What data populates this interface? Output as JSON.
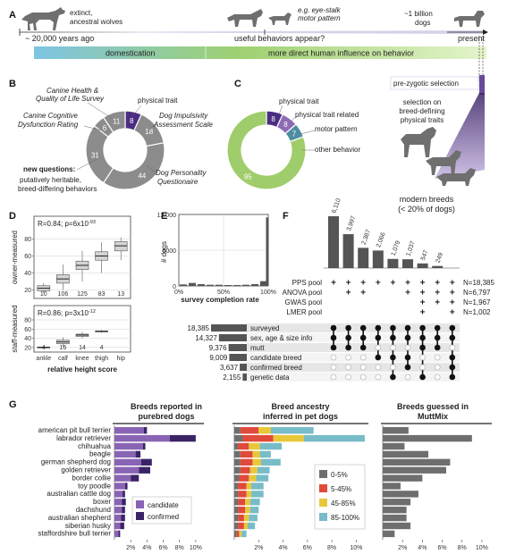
{
  "panel_a": {
    "letter": "A",
    "wolf_label_1": "extinct,",
    "wolf_label_2": "ancestral wolves",
    "years_ago": "~ 20,000 years ago",
    "example_label": "e.g. eye-stalk",
    "example_label_2": "motor pattern",
    "behaviors_label": "useful behaviors appear?",
    "dogs_label_1": "~1 billion",
    "dogs_label_2": "dogs",
    "present_label": "present",
    "domestication": "domestication",
    "influence": "more direct human influence on behavior",
    "colors": {
      "left": "#7ec4e4",
      "mid": "#9ed070",
      "right": "#d6f0b8"
    }
  },
  "panel_b": {
    "letter": "B",
    "labels": {
      "health": [
        "Canine Health &",
        "Quality of Life Survey"
      ],
      "cognitive": [
        "Canine Cognitive",
        "Dysfunction Rating"
      ],
      "physical": "physical trait",
      "impulsivity": [
        "Dog Impulsivity",
        "Assessment Scale"
      ],
      "personality": [
        "Dog Personality",
        "Questionaire"
      ],
      "new_q": "new questions:",
      "new_q_desc": [
        "putatively heritable,",
        "breed-differing behaviors"
      ]
    },
    "chart_data": {
      "type": "pie",
      "categories": [
        "physical trait",
        "Dog Impulsivity Assessment Scale",
        "Dog Personality Questionaire",
        "new questions",
        "Canine Cognitive Dysfunction Rating",
        "Canine Health & Quality of Life Survey"
      ],
      "values": [
        8,
        18,
        44,
        31,
        6,
        11
      ],
      "colors": [
        "#4b2d83",
        "#8c8c8c",
        "#8c8c8c",
        "#8c8c8c",
        "#8c8c8c",
        "#8c8c8c"
      ]
    }
  },
  "panel_c": {
    "letter": "C",
    "labels": [
      "physical trait",
      "physical trait related",
      "motor pattern",
      "other behavior"
    ],
    "chart_data": {
      "type": "pie",
      "categories": [
        "physical trait",
        "physical trait related",
        "motor pattern",
        "other behavior"
      ],
      "values": [
        8,
        8,
        7,
        95
      ],
      "colors": [
        "#4b2d83",
        "#8e6bb5",
        "#4e8da0",
        "#9fcd6b"
      ]
    }
  },
  "panel_right": {
    "prezygotic": "pre-zygotic selection",
    "selection": [
      "selection on",
      "breed-defining",
      "physical traits"
    ],
    "modern": [
      "modern breeds",
      "(< 20% of dogs)"
    ]
  },
  "panel_d": {
    "letter": "D",
    "xlabel": "relative height score",
    "categories": [
      "ankle",
      "calf",
      "knee",
      "thigh",
      "hip"
    ],
    "owner": {
      "ylabel": "owner-measured",
      "stat": "R=0.84; p=6x10",
      "stat_exp": "-93",
      "counts": [
        "10",
        "106",
        "125",
        "83",
        "13"
      ],
      "yticks": [
        "20",
        "40",
        "60",
        "80"
      ],
      "ylim": [
        10,
        90
      ],
      "chart_data": {
        "type": "box",
        "categories": [
          "ankle",
          "calf",
          "knee",
          "thigh",
          "hip"
        ],
        "boxes": [
          {
            "min": 16,
            "q1": 19,
            "median": 22,
            "q3": 25,
            "max": 28
          },
          {
            "min": 20,
            "q1": 28,
            "median": 33,
            "q3": 38,
            "max": 50
          },
          {
            "min": 30,
            "q1": 44,
            "median": 49,
            "q3": 54,
            "max": 66
          },
          {
            "min": 40,
            "q1": 55,
            "median": 60,
            "q3": 65,
            "max": 76
          },
          {
            "min": 55,
            "q1": 66,
            "median": 72,
            "q3": 77,
            "max": 82
          }
        ]
      }
    },
    "staff": {
      "ylabel": "staff-measured",
      "stat": "R=0.86; p=3x10",
      "stat_exp": "-12",
      "counts": [
        "4",
        "16",
        "14",
        "4"
      ],
      "yticks": [
        "20",
        "40",
        "60",
        "80"
      ],
      "ylim": [
        10,
        80
      ],
      "chart_data": {
        "type": "box",
        "categories": [
          "ankle",
          "calf",
          "knee",
          "thigh"
        ],
        "boxes": [
          {
            "min": 18,
            "q1": 19,
            "median": 20,
            "q3": 21,
            "max": 22
          },
          {
            "min": 22,
            "q1": 28,
            "median": 32,
            "q3": 36,
            "max": 42
          },
          {
            "min": 40,
            "q1": 44,
            "median": 47,
            "q3": 49,
            "max": 54
          },
          {
            "min": 52,
            "q1": 54,
            "median": 55,
            "q3": 56,
            "max": 58
          }
        ]
      }
    }
  },
  "panel_e": {
    "letter": "E",
    "ylabel": "# dogs",
    "xlabel": "survey completion rate",
    "yticks": [
      "0",
      "6000",
      "12,000"
    ],
    "xticks": [
      "0%",
      "50%",
      "100%"
    ],
    "chart_data": {
      "type": "bar",
      "x": [
        5,
        15,
        25,
        35,
        45,
        55,
        65,
        75,
        85,
        95,
        99
      ],
      "values": [
        250,
        500,
        300,
        200,
        200,
        150,
        150,
        200,
        300,
        800,
        11500
      ],
      "ylim": [
        0,
        12000
      ]
    }
  },
  "panel_f": {
    "letter": "F",
    "pools": [
      "PPS pool",
      "ANOVA pool",
      "GWAS pool",
      "LMER pool"
    ],
    "pool_counts": [
      "N=18,385",
      "N=6,797",
      "N=1,967",
      "N=1,002"
    ],
    "sets": [
      "surveyed",
      "sex, age & size info",
      "mutt",
      "candidate breed",
      "confirmed breed",
      "genetic data"
    ],
    "set_counts": [
      "18,385",
      "14,327",
      "9,376",
      "9,009",
      "3,637",
      "2,155"
    ],
    "chart_data": {
      "type": "bar",
      "categories": [
        "c1",
        "c2",
        "c3",
        "c4",
        "c5",
        "c6",
        "c7",
        "c8",
        "c9"
      ],
      "values": [
        6110,
        3997,
        2387,
        2066,
        1079,
        1037,
        547,
        249,
        0
      ],
      "labels": [
        "6,110",
        "3,997",
        "2,387",
        "2,066",
        "1,079",
        "1,037",
        "547",
        "249"
      ]
    },
    "set_sizes": [
      18385,
      14327,
      9376,
      9009,
      3637,
      2155
    ]
  },
  "panel_g": {
    "letter": "G",
    "title_1": [
      "Breeds reported in",
      "purebred dogs"
    ],
    "title_2": [
      "Breed ancestry",
      "inferred in pet dogs"
    ],
    "title_3": [
      "Breeds guessed in",
      "MuttMix"
    ],
    "breeds": [
      "american pit bull terrier",
      "labrador retriever",
      "chihuahua",
      "beagle",
      "german shepherd dog",
      "golden retriever",
      "border collie",
      "toy poodle",
      "australian cattle dog",
      "boxer",
      "dachshund",
      "australian shepherd",
      "siberian husky",
      "staffordshire bull terrier"
    ],
    "xticks": [
      "2%",
      "4%",
      "6%",
      "8%",
      "10%"
    ],
    "legend_1": [
      "candidate",
      "confirmed"
    ],
    "legend_2": [
      "0-5%",
      "5-45%",
      "45-85%",
      "85-100%"
    ],
    "colors_1": {
      "candidate": "#8a64b4",
      "confirmed": "#3b2466"
    },
    "colors_2": [
      "#6e6e6e",
      "#e04a3a",
      "#e8c838",
      "#78bcc8"
    ],
    "chart_data": [
      {
        "type": "bar",
        "title": "Breeds reported in purebred dogs",
        "categories": [
          "american pit bull terrier",
          "labrador retriever",
          "chihuahua",
          "beagle",
          "german shepherd dog",
          "golden retriever",
          "border collie",
          "toy poodle",
          "australian cattle dog",
          "boxer",
          "dachshund",
          "australian shepherd",
          "siberian husky",
          "staffordshire bull terrier"
        ],
        "series": [
          {
            "name": "candidate",
            "values": [
              3.6,
              6.8,
              3.5,
              2.6,
              3.3,
              3.0,
              2.0,
              1.3,
              1.0,
              0.9,
              0.9,
              0.8,
              0.7,
              0.5
            ]
          },
          {
            "name": "confirmed",
            "values": [
              0.4,
              3.2,
              0.3,
              0.6,
              1.3,
              1.4,
              1.0,
              0.3,
              0.3,
              0.5,
              0.4,
              0.5,
              0.5,
              0.2
            ]
          }
        ],
        "xlim": [
          0,
          11
        ]
      },
      {
        "type": "bar",
        "title": "Breed ancestry inferred in pet dogs",
        "categories": [
          "american pit bull terrier",
          "labrador retriever",
          "chihuahua",
          "beagle",
          "german shepherd dog",
          "golden retriever",
          "border collie",
          "toy poodle",
          "australian cattle dog",
          "boxer",
          "dachshund",
          "australian shepherd",
          "siberian husky",
          "staffordshire bull terrier"
        ],
        "series": [
          {
            "name": "0-5%",
            "values": [
              0.5,
              0.7,
              0.3,
              0.5,
              0.5,
              0.5,
              0.4,
              0.3,
              0.3,
              0.3,
              0.3,
              0.3,
              0.3,
              0.2
            ]
          },
          {
            "name": "5-45%",
            "values": [
              1.5,
              2.5,
              0.9,
              1.0,
              1.0,
              0.8,
              0.8,
              0.7,
              0.7,
              0.6,
              0.6,
              0.5,
              0.5,
              0.2
            ]
          },
          {
            "name": "45-85%",
            "values": [
              1.0,
              2.5,
              0.9,
              0.6,
              0.7,
              0.6,
              0.6,
              0.4,
              0.4,
              0.4,
              0.4,
              0.4,
              0.3,
              0.2
            ]
          },
          {
            "name": "85-100%",
            "values": [
              3.5,
              5.0,
              1.8,
              0.9,
              1.6,
              1.0,
              1.0,
              1.0,
              1.0,
              0.8,
              0.7,
              0.7,
              0.6,
              0.4
            ]
          }
        ],
        "xlim": [
          0,
          11
        ]
      },
      {
        "type": "bar",
        "title": "Breeds guessed in MuttMix",
        "categories": [
          "american pit bull terrier",
          "labrador retriever",
          "chihuahua",
          "beagle",
          "german shepherd dog",
          "golden retriever",
          "border collie",
          "toy poodle",
          "australian cattle dog",
          "boxer",
          "dachshund",
          "australian shepherd",
          "siberian husky",
          "staffordshire bull terrier"
        ],
        "values": [
          2.6,
          9.0,
          2.2,
          4.6,
          6.8,
          6.4,
          4.0,
          1.8,
          3.6,
          2.8,
          2.4,
          2.4,
          2.8,
          1.2
        ],
        "xlim": [
          0,
          11
        ]
      }
    ]
  }
}
